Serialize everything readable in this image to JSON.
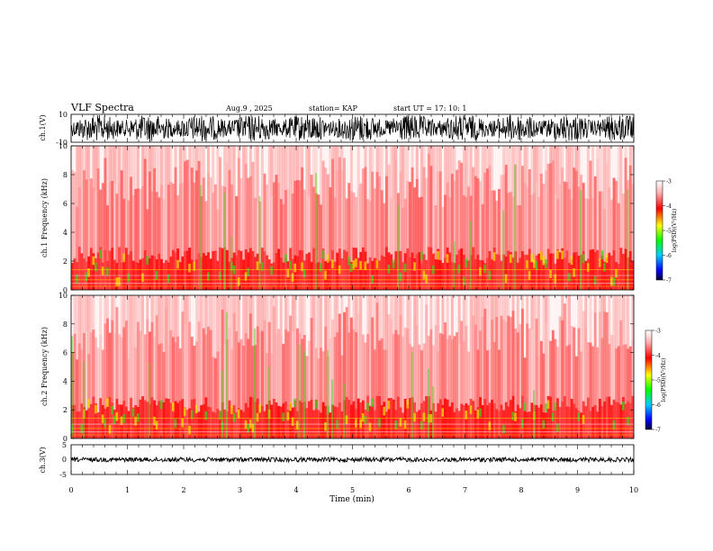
{
  "chart_data": [
    {
      "type": "line",
      "title": "VLF Spectra",
      "date": "Aug.9 , 2025",
      "station": "station= KAP",
      "start_ut": "start UT = 17: 10: 1",
      "ylabel": "ch.1(V)",
      "ylim": [
        -10,
        10
      ],
      "yticks": [
        "10",
        "-10"
      ],
      "xlim": [
        0,
        10
      ]
    },
    {
      "type": "heatmap",
      "ylabel": "ch.1 Frequency (kHz)",
      "ylim": [
        0,
        10
      ],
      "yticks": [
        "0",
        "2",
        "4",
        "6",
        "8",
        "10"
      ],
      "xlim": [
        0,
        10
      ],
      "colorbar": {
        "label": "log(PSD)(V²/Hz)",
        "ticks": [
          "-3",
          "-4",
          "-5",
          "-6",
          "-7"
        ],
        "range": [
          -7,
          -3
        ]
      }
    },
    {
      "type": "heatmap",
      "ylabel": "ch.2 Frequency (kHz)",
      "ylim": [
        0,
        10
      ],
      "yticks": [
        "0",
        "2",
        "4",
        "6",
        "8",
        "10"
      ],
      "xlim": [
        0,
        10
      ],
      "colorbar": {
        "label": "log(PSD)(V²/Hz)",
        "ticks": [
          "-3",
          "-4",
          "-5",
          "-6",
          "-7"
        ],
        "range": [
          -7,
          -3
        ]
      }
    },
    {
      "type": "line",
      "ylabel": "ch.3(V)",
      "ylim": [
        -5,
        5
      ],
      "yticks": [
        "5",
        "0",
        "-5"
      ],
      "xlim": [
        0,
        10
      ],
      "xlabel": "Time (min)",
      "xticks": [
        "0",
        "1",
        "2",
        "3",
        "4",
        "5",
        "6",
        "7",
        "8",
        "9",
        "10"
      ]
    }
  ]
}
